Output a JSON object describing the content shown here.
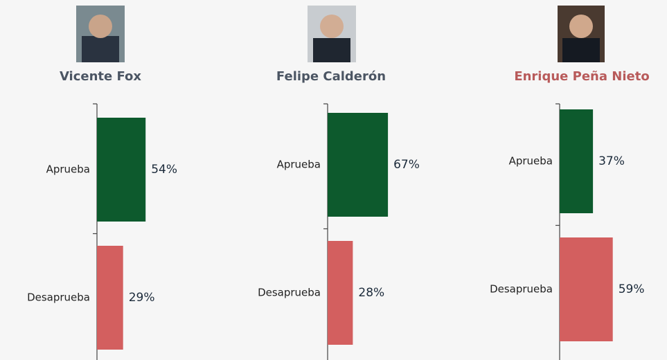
{
  "chart_data": [
    {
      "type": "bar",
      "orientation": "horizontal",
      "title": "Vicente Fox",
      "title_color": "#4b5563",
      "categories": [
        "Aprueba",
        "Desaprueba"
      ],
      "values": [
        54,
        29
      ],
      "value_labels": [
        "54%",
        "29%"
      ],
      "colors": [
        "#0d5a2d",
        "#d35f5f"
      ]
    },
    {
      "type": "bar",
      "orientation": "horizontal",
      "title": "Felipe Calderón",
      "title_color": "#4b5563",
      "categories": [
        "Aprueba",
        "Desaprueba"
      ],
      "values": [
        67,
        28
      ],
      "value_labels": [
        "67%",
        "28%"
      ],
      "colors": [
        "#0d5a2d",
        "#d35f5f"
      ]
    },
    {
      "type": "bar",
      "orientation": "horizontal",
      "title": "Enrique Peña Nieto",
      "title_color": "#b85a5a",
      "categories": [
        "Aprueba",
        "Desaprueba"
      ],
      "values": [
        37,
        59
      ],
      "value_labels": [
        "37%",
        "59%"
      ],
      "colors": [
        "#0d5a2d",
        "#d35f5f"
      ]
    }
  ]
}
